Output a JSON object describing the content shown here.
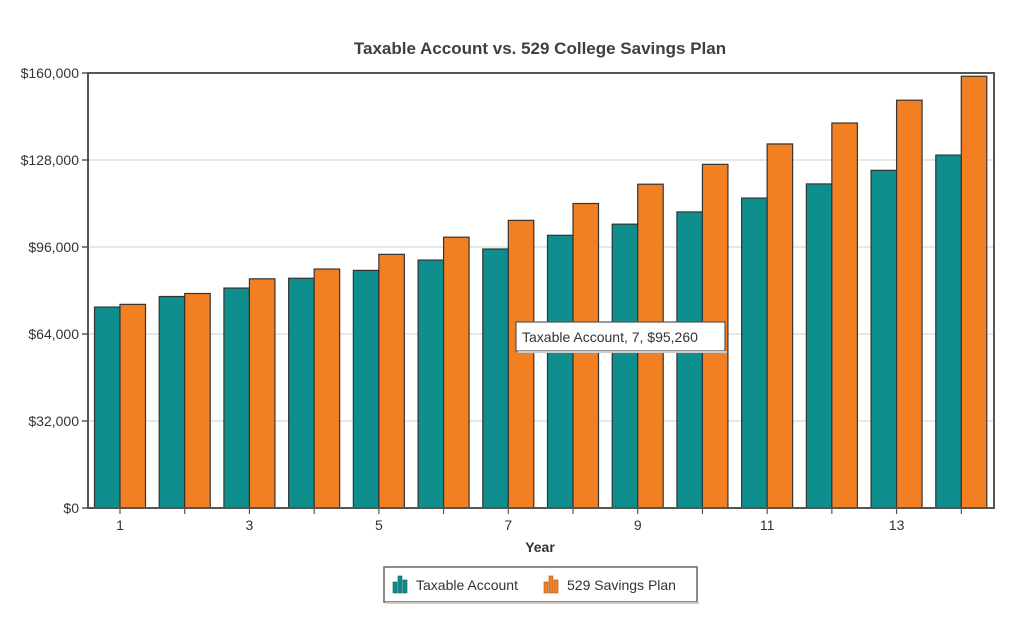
{
  "chart_data": {
    "type": "bar",
    "title": "Taxable Account vs. 529 College Savings Plan",
    "xlabel": "Year",
    "ylabel": "",
    "categories": [
      "1",
      "2",
      "3",
      "4",
      "5",
      "6",
      "7",
      "8",
      "9",
      "10",
      "11",
      "12",
      "13",
      "14"
    ],
    "x_tick_labels": [
      "1",
      "3",
      "5",
      "7",
      "9",
      "11",
      "13"
    ],
    "y_tick_labels": [
      "$0",
      "$32,000",
      "$64,000",
      "$96,000",
      "$128,000",
      "$160,000"
    ],
    "y_ticks": [
      0,
      32000,
      64000,
      96000,
      128000,
      160000
    ],
    "ylim": [
      0,
      160000
    ],
    "grid": true,
    "legend_position": "bottom-center",
    "series": [
      {
        "name": "Taxable Account",
        "color": "#0f8e8e",
        "values": [
          73900,
          77800,
          80900,
          84500,
          87400,
          91200,
          95260,
          100300,
          104400,
          108900,
          114000,
          119200,
          124200,
          129800
        ]
      },
      {
        "name": "529 Savings Plan",
        "color": "#f28023",
        "values": [
          74900,
          78900,
          84300,
          87900,
          93300,
          99600,
          105800,
          112000,
          119100,
          126400,
          133900,
          141600,
          150000,
          158800
        ]
      }
    ],
    "tooltip": {
      "text": "Taxable Account, 7, $95,260",
      "series_index": 0,
      "category_index": 6
    }
  }
}
